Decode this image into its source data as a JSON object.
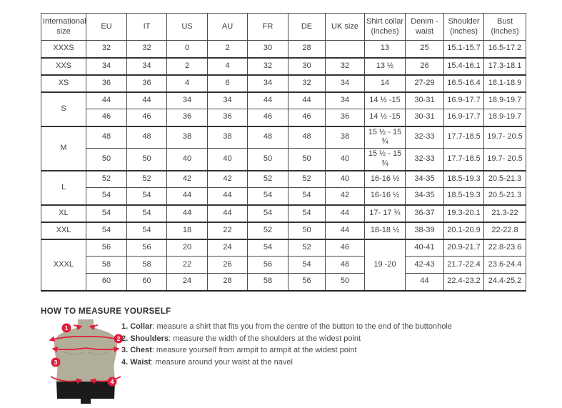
{
  "table": {
    "headers": [
      "International size",
      "EU",
      "IT",
      "US",
      "AU",
      "FR",
      "DE",
      "UK size",
      "Shirt collar (inches)",
      "Denim - waist",
      "Shoulder (inches)",
      "Bust (inches)"
    ],
    "groups": [
      {
        "size": "XXXS",
        "rows": [
          [
            "32",
            "32",
            "0",
            "2",
            "30",
            "28",
            "",
            "13",
            "25",
            "15.1-15.7",
            "16.5-17.2"
          ]
        ]
      },
      {
        "size": "XXS",
        "rows": [
          [
            "34",
            "34",
            "2",
            "4",
            "32",
            "30",
            "32",
            "13 ½",
            "26",
            "15.4-16.1",
            "17.3-18.1"
          ]
        ]
      },
      {
        "size": "XS",
        "rows": [
          [
            "36",
            "36",
            "4",
            "6",
            "34",
            "32",
            "34",
            "14",
            "27-29",
            "16.5-16.4",
            "18.1-18.9"
          ]
        ]
      },
      {
        "size": "S",
        "rows": [
          [
            "44",
            "44",
            "34",
            "34",
            "44",
            "44",
            "34",
            "14 ½ -15",
            "30-31",
            "16.9-17.7",
            "18.9-19.7"
          ],
          [
            "46",
            "46",
            "36",
            "36",
            "46",
            "46",
            "36",
            "14 ½ -15",
            "30-31",
            "16.9-17.7",
            "18.9-19.7"
          ]
        ]
      },
      {
        "size": "M",
        "rows": [
          [
            "48",
            "48",
            "38",
            "38",
            "48",
            "48",
            "38",
            "15 ½ - 15 ¾",
            "32-33",
            "17.7-18.5",
            "19.7- 20.5"
          ],
          [
            "50",
            "50",
            "40",
            "40",
            "50",
            "50",
            "40",
            "15 ½ - 15 ¾",
            "32-33",
            "17.7-18.5",
            "19.7- 20.5"
          ]
        ]
      },
      {
        "size": "L",
        "rows": [
          [
            "52",
            "52",
            "42",
            "42",
            "52",
            "52",
            "40",
            "16-16 ½",
            "34-35",
            "18.5-19.3",
            "20.5-21.3"
          ],
          [
            "54",
            "54",
            "44",
            "44",
            "54",
            "54",
            "42",
            "16-16 ½",
            "34-35",
            "18.5-19.3",
            "20.5-21.3"
          ]
        ]
      },
      {
        "size": "XL",
        "rows": [
          [
            "54",
            "54",
            "44",
            "44",
            "54",
            "54",
            "44",
            "17- 17 ¾",
            "36-37",
            "19.3-20.1",
            "21.3-22"
          ]
        ]
      },
      {
        "size": "XXL",
        "rows": [
          [
            "54",
            "54",
            "18",
            "22",
            "52",
            "50",
            "44",
            "18-18 ½",
            "38-39",
            "20.1-20.9",
            "22-22.8"
          ]
        ]
      },
      {
        "size": "XXXL",
        "collar_merged": "19 -20",
        "rows": [
          [
            "56",
            "56",
            "20",
            "24",
            "54",
            "52",
            "46",
            "40-41",
            "20.9-21.7",
            "22.8-23.6"
          ],
          [
            "58",
            "58",
            "22",
            "26",
            "56",
            "54",
            "48",
            "42-43",
            "21.7-22.4",
            "23.6-24.4"
          ],
          [
            "60",
            "60",
            "24",
            "28",
            "58",
            "56",
            "50",
            "44",
            "22.4-23.2",
            "24.4-25.2"
          ]
        ]
      }
    ]
  },
  "measure": {
    "heading": "HOW TO MEASURE YOURSELF",
    "steps": [
      {
        "bold": "1. Collar",
        "rest": ": measure a shirt that fits you from the centre of the button to the end of the buttonhole"
      },
      {
        "bold": "2. Shoulders",
        "rest": ": measure the width of the shoulders at the widest point"
      },
      {
        "bold": "3. Chest",
        "rest": ": measure yourself from armpit to armpit at the widest point"
      },
      {
        "bold": "4. Waist",
        "rest": ": measure around your waist at the navel"
      }
    ],
    "figure": {
      "badges": [
        "1",
        "2",
        "3",
        "4"
      ],
      "colors": {
        "red": "#e01e3c",
        "torso": "#b1ae99",
        "shorts": "#1b1b1b"
      }
    }
  }
}
